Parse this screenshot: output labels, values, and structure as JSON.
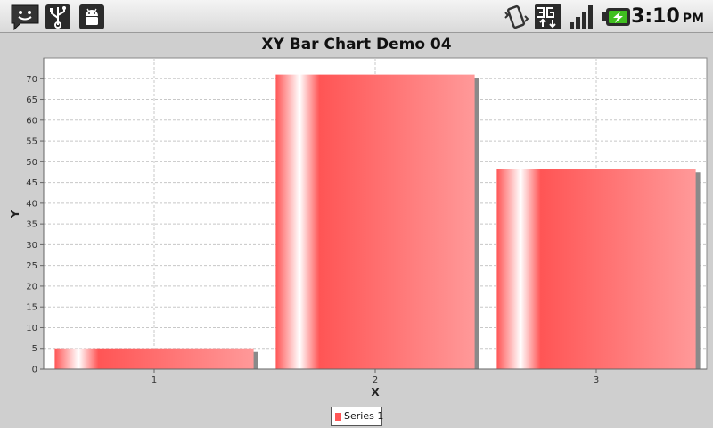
{
  "statusbar": {
    "time": "3:10",
    "ampm": "PM",
    "left_icons": [
      "chat-notification-icon",
      "usb-icon",
      "android-debug-icon"
    ],
    "right_icons": [
      "vibrate-icon",
      "3g-data-icon",
      "signal-strength-icon",
      "battery-charging-icon"
    ]
  },
  "colors": {
    "bar": "#ff5555",
    "bar_highlight": "#ffffff",
    "shadow": "#8a8a8a",
    "plot_bg": "#ffffff",
    "grid": "#c8c8c8",
    "battery": "#3fbf1f"
  },
  "chart_data": {
    "type": "bar",
    "title": "XY Bar Chart Demo 04",
    "xlabel": "X",
    "ylabel": "Y",
    "x": [
      1,
      2,
      3
    ],
    "categories": [
      "1",
      "2",
      "3"
    ],
    "series": [
      {
        "name": "Series 1",
        "values": [
          5,
          71,
          48.3
        ]
      }
    ],
    "xlim": [
      0.5,
      3.5
    ],
    "ylim": [
      0,
      75
    ],
    "yticks": [
      "0",
      "5",
      "10",
      "15",
      "20",
      "25",
      "30",
      "35",
      "40",
      "45",
      "50",
      "55",
      "60",
      "65",
      "70"
    ],
    "grid": true,
    "legend_position": "bottom-center"
  }
}
